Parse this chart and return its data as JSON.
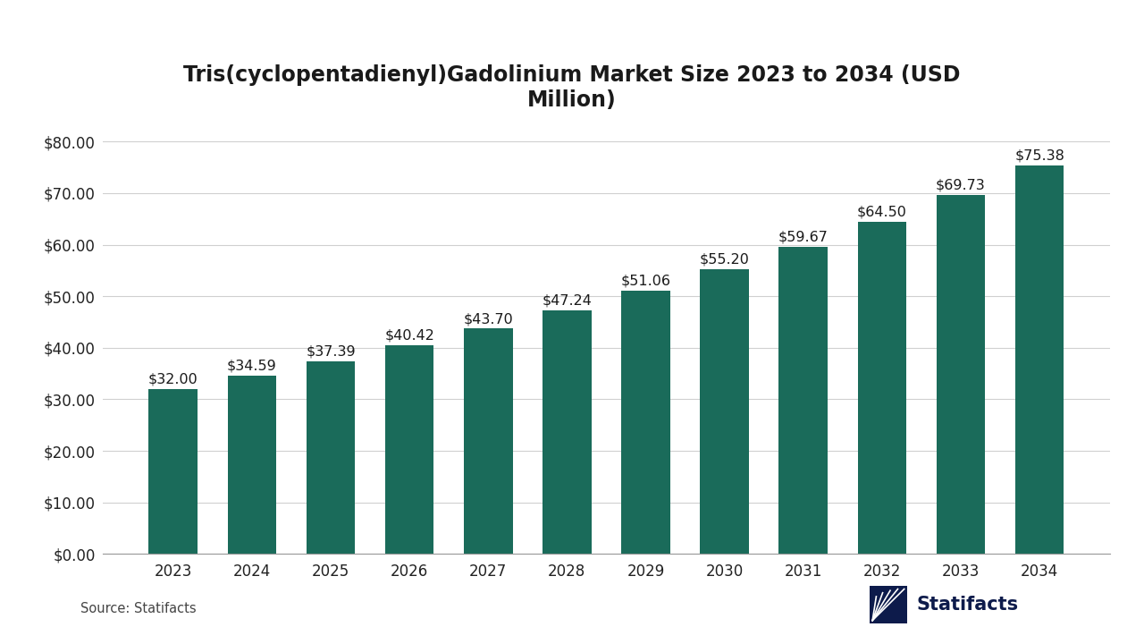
{
  "title": "Tris(cyclopentadienyl)Gadolinium Market Size 2023 to 2034 (USD\nMillion)",
  "years": [
    "2023",
    "2024",
    "2025",
    "2026",
    "2027",
    "2028",
    "2029",
    "2030",
    "2031",
    "2032",
    "2033",
    "2034"
  ],
  "values": [
    32.0,
    34.59,
    37.39,
    40.42,
    43.7,
    47.24,
    51.06,
    55.2,
    59.67,
    64.5,
    69.73,
    75.38
  ],
  "labels": [
    "$32.00",
    "$34.59",
    "$37.39",
    "$40.42",
    "$43.70",
    "$47.24",
    "$51.06",
    "$55.20",
    "$59.67",
    "$64.50",
    "$69.73",
    "$75.38"
  ],
  "bar_color": "#1a6b5a",
  "background_color": "#ffffff",
  "ylim": [
    0,
    85
  ],
  "yticks": [
    0,
    10,
    20,
    30,
    40,
    50,
    60,
    70,
    80
  ],
  "ytick_labels": [
    "$0.00",
    "$10.00",
    "$20.00",
    "$30.00",
    "$40.00",
    "$50.00",
    "$60.00",
    "$70.00",
    "$80.00"
  ],
  "source_text": "Source: Statifacts",
  "title_fontsize": 17,
  "tick_fontsize": 12,
  "label_fontsize": 11.5,
  "source_fontsize": 10.5,
  "grid_color": "#d0d0d0",
  "logo_color": "#0d1b4b"
}
